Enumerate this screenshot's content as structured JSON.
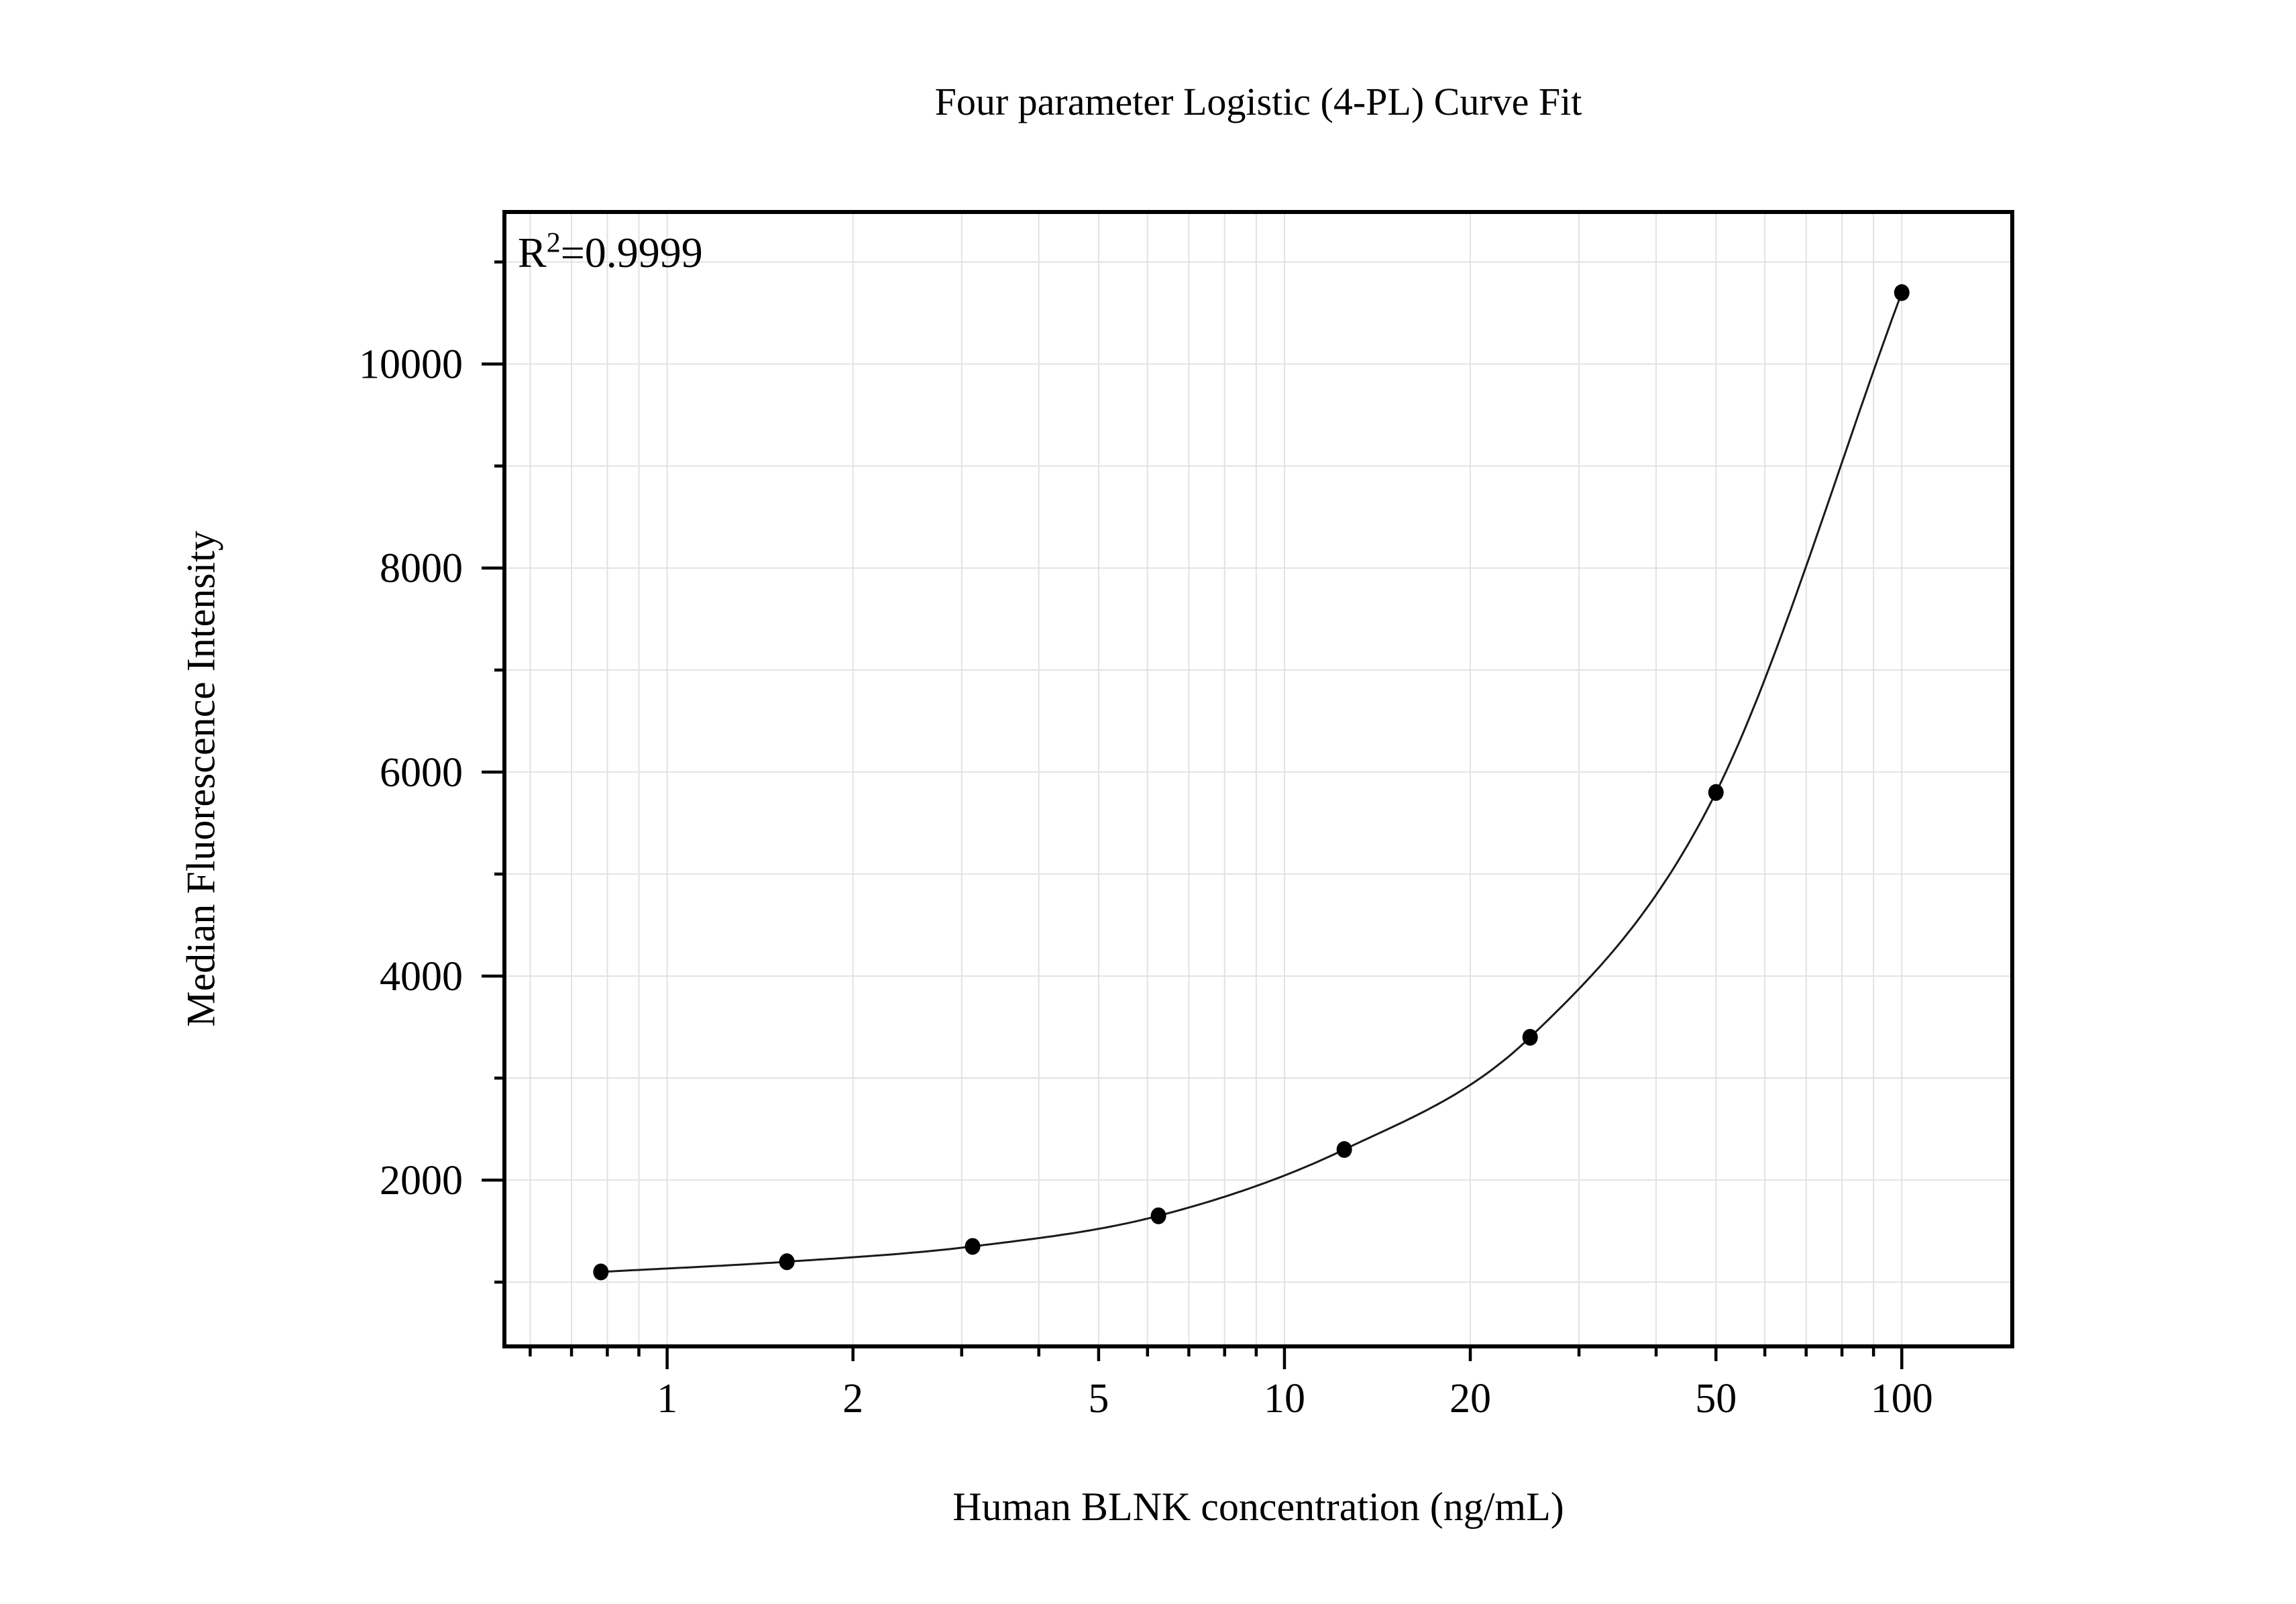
{
  "chart_data": {
    "type": "scatter",
    "title": "Four parameter Logistic (4-PL) Curve Fit",
    "xlabel": "Human BLNK concentration (ng/mL)",
    "ylabel": "Median Fluorescence Intensity",
    "annotation": {
      "base": "R",
      "exponent": "2",
      "value_text": "=0.9999"
    },
    "x_scale": "log",
    "xlim": [
      0.545,
      151
    ],
    "ylim": [
      370,
      11490
    ],
    "x": [
      0.781,
      1.563,
      3.125,
      6.25,
      12.5,
      25,
      50,
      100
    ],
    "y": [
      1100,
      1200,
      1350,
      1650,
      2300,
      3400,
      5800,
      10700
    ],
    "x_major_ticks": [
      1,
      10,
      100
    ],
    "x_labeled_ticks": [
      1,
      2,
      5,
      10,
      20,
      50,
      100
    ],
    "x_minor_ticks": [
      0.6,
      0.7,
      0.8,
      0.9,
      2,
      3,
      4,
      5,
      6,
      7,
      8,
      9,
      20,
      30,
      40,
      50,
      60,
      70,
      80,
      90
    ],
    "y_major_ticks": [
      2000,
      4000,
      6000,
      8000,
      10000
    ],
    "y_minor_ticks": [
      1000,
      3000,
      5000,
      7000,
      9000,
      11000
    ],
    "grid": true,
    "legend": "none",
    "colors": {
      "curve": "#1a1a1a",
      "marker": "#000000",
      "grid": "#e2e2e2",
      "axis": "#000000",
      "background": "#ffffff"
    }
  }
}
